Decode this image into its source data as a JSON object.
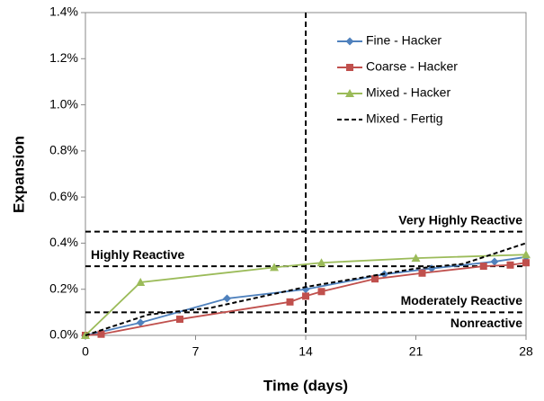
{
  "chart_data": {
    "type": "line",
    "x_label": "Time (days)",
    "y_label": "Expansion",
    "xlim": [
      0,
      28
    ],
    "xticks": [
      0,
      7,
      14,
      21,
      28
    ],
    "ylim": [
      0,
      1.4
    ],
    "yticks": [
      {
        "value": 0,
        "label": "0.0%"
      },
      {
        "value": 0.2,
        "label": "0.2%"
      },
      {
        "value": 0.4,
        "label": "0.4%"
      },
      {
        "value": 0.6,
        "label": "0.6%"
      },
      {
        "value": 0.8,
        "label": "0.8%"
      },
      {
        "value": 1.0,
        "label": "1.0%"
      },
      {
        "value": 1.2,
        "label": "1.2%"
      },
      {
        "value": 1.4,
        "label": "1.4%"
      }
    ],
    "grid": false,
    "legend": "top-right",
    "series": [
      {
        "name": "Fine - Hacker",
        "color": "#4f81bd",
        "marker": "diamond",
        "dash": false,
        "x": [
          0,
          3.5,
          9,
          14,
          19,
          22,
          26,
          28
        ],
        "values": [
          0,
          0.055,
          0.16,
          0.2,
          0.265,
          0.29,
          0.32,
          0.34
        ]
      },
      {
        "name": "Coarse - Hacker",
        "color": "#c0504d",
        "marker": "square",
        "dash": false,
        "x": [
          0,
          1,
          6,
          13,
          14,
          15,
          18.4,
          21.4,
          25.3,
          27,
          28
        ],
        "values": [
          0,
          0.005,
          0.07,
          0.145,
          0.17,
          0.19,
          0.245,
          0.27,
          0.3,
          0.305,
          0.315
        ]
      },
      {
        "name": "Mixed - Hacker",
        "color": "#9bbb59",
        "marker": "triangle",
        "dash": false,
        "x": [
          0,
          3.5,
          12,
          15,
          21,
          28
        ],
        "values": [
          0,
          0.23,
          0.295,
          0.315,
          0.335,
          0.35
        ]
      },
      {
        "name": "Mixed - Fertig",
        "color": "#000000",
        "marker": "none",
        "dash": true,
        "x": [
          0,
          4,
          8,
          14,
          21,
          24,
          28
        ],
        "values": [
          0,
          0.09,
          0.12,
          0.21,
          0.29,
          0.31,
          0.4
        ]
      }
    ],
    "vline": 14,
    "reference_lines": [
      {
        "value": 0.45,
        "label": "Very Highly Reactive"
      },
      {
        "value": 0.3,
        "label": "Highly Reactive"
      },
      {
        "value": 0.1,
        "label": "Moderately Reactive"
      },
      {
        "value": 0.1,
        "label": "Nonreactive"
      }
    ]
  }
}
